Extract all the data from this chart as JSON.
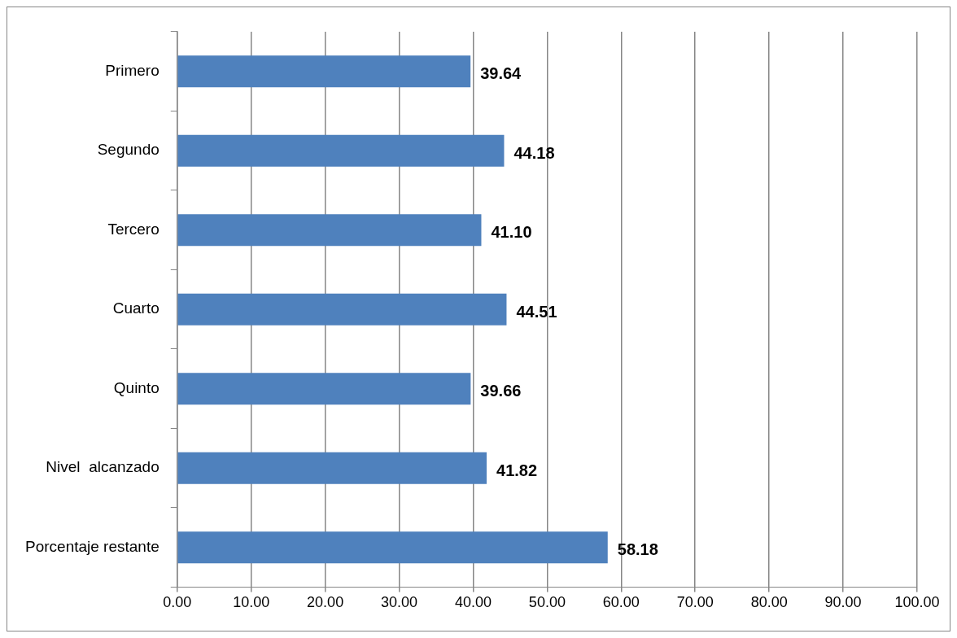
{
  "chart_data": {
    "type": "bar",
    "orientation": "horizontal",
    "categories": [
      "Primero",
      "Segundo",
      "Tercero",
      "Cuarto",
      "Quinto",
      "Nivel  alcanzado",
      "Porcentaje restante"
    ],
    "values": [
      39.64,
      44.18,
      41.1,
      44.51,
      39.66,
      41.82,
      58.18
    ],
    "value_labels": [
      "39.64",
      "44.18",
      "41.10",
      "44.51",
      "39.66",
      "41.82",
      "58.18"
    ],
    "color": "#4f81bd",
    "xlim": [
      0,
      100
    ],
    "xticks": [
      {
        "value": 0,
        "label": "0.00"
      },
      {
        "value": 10,
        "label": "10.00"
      },
      {
        "value": 20,
        "label": "20.00"
      },
      {
        "value": 30,
        "label": "30.00"
      },
      {
        "value": 40,
        "label": "40.00"
      },
      {
        "value": 50,
        "label": "50.00"
      },
      {
        "value": 60,
        "label": "60.00"
      },
      {
        "value": 70,
        "label": "70.00"
      },
      {
        "value": 80,
        "label": "80.00"
      },
      {
        "value": 90,
        "label": "90.00"
      },
      {
        "value": 100,
        "label": "100.00"
      }
    ],
    "grid": "x",
    "legend": false
  }
}
